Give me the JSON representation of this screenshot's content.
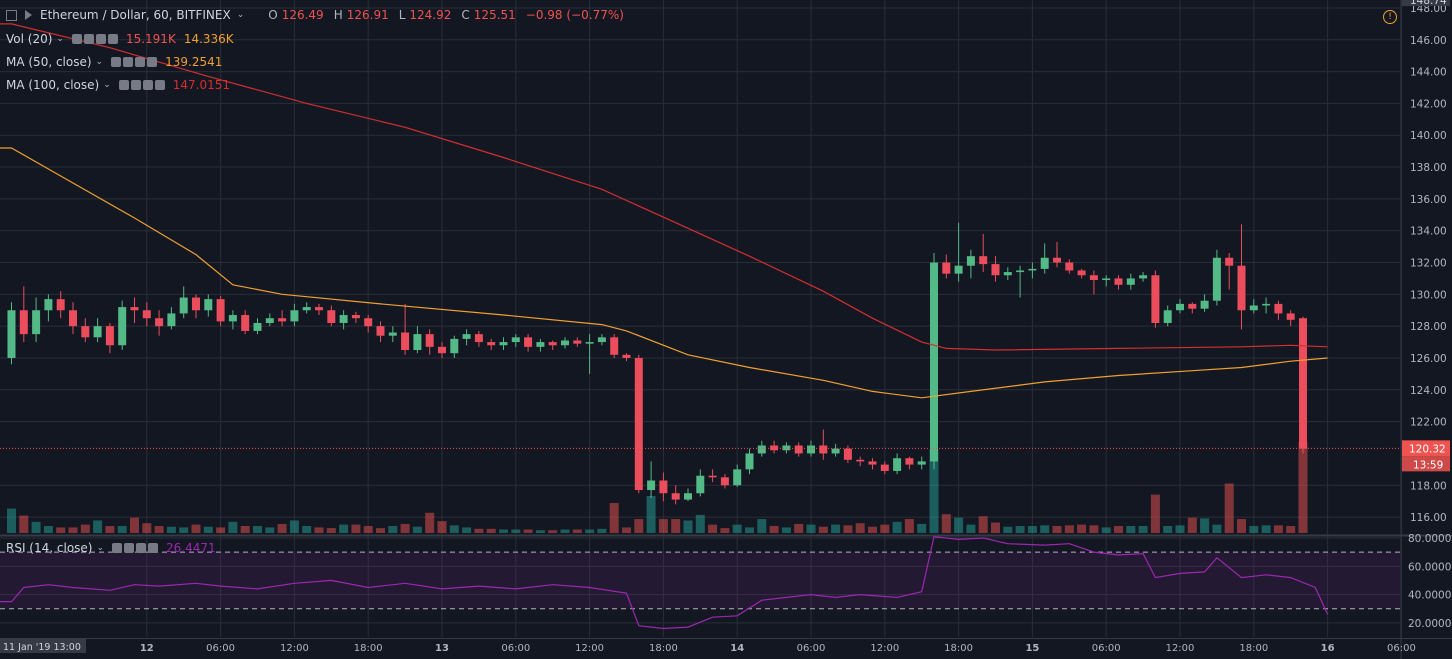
{
  "header": {
    "symbol": "Ethereum / Dollar, 60, BITFINEX",
    "o_label": "O",
    "o_value": "126.49",
    "h_label": "H",
    "h_value": "126.91",
    "l_label": "L",
    "l_value": "124.92",
    "c_label": "C",
    "c_value": "125.51",
    "change": "−0.98 (−0.77%)"
  },
  "indicators": {
    "vol": {
      "label": "Vol (20)",
      "v1": "15.191K",
      "v2": "14.336K"
    },
    "ma50": {
      "label": "MA (50, close)",
      "value": "139.2541"
    },
    "ma100": {
      "label": "MA (100, close)",
      "value": "147.0151"
    },
    "rsi": {
      "label": "RSI (14, close)",
      "value": "26.4471"
    }
  },
  "colors": {
    "background": "#131722",
    "grid": "#2a2e39",
    "up": "#26a69a",
    "up_candle": "#53b987",
    "down": "#ef5350",
    "down_candle": "#eb4d5c",
    "ma50": "#f0a030",
    "ma100": "#d32f2f",
    "rsi": "#9c27b0",
    "axis_text": "#b2b5be",
    "price_tag": "#ef5350"
  },
  "chart_data": {
    "type": "candlestick",
    "price_axis": {
      "ticks": [
        "148.00",
        "146.00",
        "144.00",
        "142.00",
        "140.00",
        "138.00",
        "136.00",
        "134.00",
        "132.00",
        "130.00",
        "128.00",
        "126.00",
        "124.00",
        "122.00",
        "118.00",
        "116.00"
      ],
      "ylim": [
        115,
        148.5
      ],
      "top_partial_label": "148.74"
    },
    "last_price": {
      "value": "120.32",
      "countdown": "13:59"
    },
    "rsi_axis": {
      "ticks": [
        "80.0000",
        "60.0000",
        "40.0000",
        "20.0000"
      ],
      "ylim": [
        10,
        80
      ],
      "bands": [
        70,
        30
      ]
    },
    "time_axis": {
      "labels": [
        {
          "label": "11 Jan '19  13:00",
          "index": 0
        },
        {
          "label": "12",
          "index": 11
        },
        {
          "label": "06:00",
          "index": 17
        },
        {
          "label": "12:00",
          "index": 23
        },
        {
          "label": "18:00",
          "index": 29
        },
        {
          "label": "13",
          "index": 35
        },
        {
          "label": "06:00",
          "index": 41
        },
        {
          "label": "12:00",
          "index": 47
        },
        {
          "label": "18:00",
          "index": 53
        },
        {
          "label": "14",
          "index": 59
        },
        {
          "label": "06:00",
          "index": 65
        },
        {
          "label": "12:00",
          "index": 71
        },
        {
          "label": "18:00",
          "index": 77
        },
        {
          "label": "15",
          "index": 83
        },
        {
          "label": "06:00",
          "index": 89
        },
        {
          "label": "12:00",
          "index": 95
        },
        {
          "label": "18:00",
          "index": 101
        },
        {
          "label": "16",
          "index": 107
        },
        {
          "label": "06:00",
          "index": 113
        }
      ]
    },
    "candles": [
      [
        126.0,
        129.0,
        125.6,
        129.5
      ],
      [
        129.0,
        127.5,
        127.0,
        130.5
      ],
      [
        127.5,
        129.0,
        127.0,
        129.8
      ],
      [
        129.0,
        129.7,
        128.3,
        130.0
      ],
      [
        129.7,
        129.0,
        128.5,
        130.2
      ],
      [
        129.0,
        128.0,
        127.5,
        129.5
      ],
      [
        128.0,
        127.3,
        127.0,
        128.5
      ],
      [
        127.3,
        128.0,
        127.0,
        128.5
      ],
      [
        128.0,
        126.8,
        126.3,
        128.2
      ],
      [
        126.8,
        129.2,
        126.5,
        129.6
      ],
      [
        129.2,
        129.0,
        128.2,
        129.8
      ],
      [
        129.0,
        128.5,
        128.0,
        129.5
      ],
      [
        128.5,
        128.0,
        127.4,
        129.0
      ],
      [
        128.0,
        128.8,
        127.8,
        129.2
      ],
      [
        128.8,
        129.8,
        128.5,
        130.5
      ],
      [
        129.8,
        129.0,
        128.5,
        130.0
      ],
      [
        129.0,
        129.7,
        128.6,
        130.0
      ],
      [
        129.7,
        128.3,
        128.0,
        129.9
      ],
      [
        128.3,
        128.7,
        127.8,
        129.0
      ],
      [
        128.7,
        127.7,
        127.5,
        129.0
      ],
      [
        127.7,
        128.2,
        127.5,
        128.5
      ],
      [
        128.2,
        128.5,
        128.0,
        128.8
      ],
      [
        128.5,
        128.3,
        128.0,
        129.0
      ],
      [
        128.3,
        129.0,
        128.0,
        129.4
      ],
      [
        129.0,
        129.2,
        128.8,
        129.5
      ],
      [
        129.2,
        129.0,
        128.7,
        129.4
      ],
      [
        129.0,
        128.2,
        128.0,
        129.3
      ],
      [
        128.2,
        128.7,
        127.8,
        129.0
      ],
      [
        128.7,
        128.5,
        128.2,
        128.9
      ],
      [
        128.5,
        128.0,
        127.6,
        128.7
      ],
      [
        128.0,
        127.4,
        127.0,
        128.3
      ],
      [
        127.4,
        127.6,
        127.0,
        128.0
      ],
      [
        127.6,
        126.5,
        126.2,
        129.4
      ],
      [
        126.5,
        127.5,
        126.3,
        128.0
      ],
      [
        127.5,
        126.7,
        126.2,
        127.8
      ],
      [
        126.7,
        126.3,
        126.0,
        127.0
      ],
      [
        126.3,
        127.2,
        126.0,
        127.4
      ],
      [
        127.2,
        127.5,
        126.8,
        127.8
      ],
      [
        127.5,
        127.0,
        126.7,
        127.7
      ],
      [
        127.0,
        126.8,
        126.5,
        127.2
      ],
      [
        126.8,
        127.0,
        126.5,
        127.3
      ],
      [
        127.0,
        127.3,
        126.7,
        127.5
      ],
      [
        127.3,
        126.7,
        126.4,
        127.5
      ],
      [
        126.7,
        127.0,
        126.4,
        127.2
      ],
      [
        127.0,
        126.8,
        126.5,
        127.1
      ],
      [
        126.8,
        127.1,
        126.6,
        127.3
      ],
      [
        127.1,
        126.9,
        126.7,
        127.3
      ],
      [
        126.9,
        127.0,
        125.0,
        127.5
      ],
      [
        127.0,
        127.3,
        126.8,
        127.5
      ],
      [
        127.3,
        126.2,
        126.0,
        127.5
      ],
      [
        126.2,
        126.0,
        125.8,
        126.3
      ],
      [
        126.0,
        117.7,
        117.5,
        126.2
      ],
      [
        117.7,
        118.3,
        117.2,
        119.5
      ],
      [
        118.3,
        117.5,
        117.0,
        118.8
      ],
      [
        117.5,
        117.1,
        116.8,
        118.0
      ],
      [
        117.1,
        117.5,
        117.0,
        117.8
      ],
      [
        117.5,
        118.6,
        117.3,
        119.0
      ],
      [
        118.6,
        118.5,
        118.2,
        119.0
      ],
      [
        118.5,
        118.0,
        117.8,
        118.7
      ],
      [
        118.0,
        119.0,
        117.9,
        119.3
      ],
      [
        119.0,
        120.0,
        118.7,
        120.3
      ],
      [
        120.0,
        120.5,
        119.8,
        120.8
      ],
      [
        120.5,
        120.2,
        120.0,
        120.8
      ],
      [
        120.2,
        120.5,
        120.0,
        120.7
      ],
      [
        120.5,
        120.0,
        119.8,
        120.7
      ],
      [
        120.0,
        120.5,
        119.8,
        120.8
      ],
      [
        120.5,
        120.0,
        119.6,
        121.5
      ],
      [
        120.0,
        120.3,
        119.8,
        120.6
      ],
      [
        120.3,
        119.6,
        119.4,
        120.5
      ],
      [
        119.6,
        119.5,
        119.2,
        119.8
      ],
      [
        119.5,
        119.3,
        119.0,
        119.7
      ],
      [
        119.3,
        118.9,
        118.7,
        119.5
      ],
      [
        118.9,
        119.7,
        118.7,
        120.0
      ],
      [
        119.7,
        119.3,
        119.0,
        119.8
      ],
      [
        119.3,
        119.5,
        119.0,
        119.8
      ],
      [
        119.5,
        132.0,
        119.0,
        132.6
      ],
      [
        132.0,
        131.3,
        131.0,
        132.5
      ],
      [
        131.3,
        131.8,
        130.8,
        134.5
      ],
      [
        131.8,
        132.4,
        131.0,
        132.8
      ],
      [
        132.4,
        131.9,
        131.4,
        133.8
      ],
      [
        131.9,
        131.2,
        130.8,
        132.4
      ],
      [
        131.2,
        131.4,
        130.9,
        131.7
      ],
      [
        131.4,
        131.5,
        129.8,
        131.8
      ],
      [
        131.5,
        131.6,
        131.0,
        132.0
      ],
      [
        131.6,
        132.3,
        131.3,
        133.2
      ],
      [
        132.3,
        132.0,
        131.7,
        133.3
      ],
      [
        132.0,
        131.5,
        131.3,
        132.2
      ],
      [
        131.5,
        131.2,
        131.0,
        131.6
      ],
      [
        131.2,
        130.9,
        130.0,
        131.5
      ],
      [
        130.9,
        131.0,
        130.5,
        131.2
      ],
      [
        131.0,
        130.6,
        130.3,
        131.2
      ],
      [
        130.6,
        131.0,
        130.3,
        131.3
      ],
      [
        131.0,
        131.2,
        130.8,
        131.4
      ],
      [
        131.2,
        128.2,
        127.9,
        131.5
      ],
      [
        128.2,
        129.0,
        128.0,
        129.3
      ],
      [
        129.0,
        129.4,
        128.8,
        129.7
      ],
      [
        129.4,
        129.1,
        128.8,
        129.5
      ],
      [
        129.1,
        129.6,
        128.9,
        130.0
      ],
      [
        129.6,
        132.3,
        129.3,
        132.8
      ],
      [
        132.3,
        131.8,
        130.3,
        132.6
      ],
      [
        131.8,
        129.0,
        127.8,
        134.4
      ],
      [
        129.0,
        129.3,
        128.8,
        129.7
      ],
      [
        129.3,
        129.4,
        128.8,
        129.8
      ],
      [
        129.4,
        128.8,
        128.4,
        129.6
      ],
      [
        128.8,
        128.4,
        128.0,
        129.0
      ],
      [
        128.5,
        120.3,
        120.0,
        128.6
      ]
    ],
    "volumes": [
      3.5,
      2.5,
      1.6,
      1.0,
      0.8,
      0.8,
      1.2,
      1.8,
      1.0,
      1.0,
      2.2,
      1.4,
      1.0,
      0.9,
      0.8,
      1.2,
      0.9,
      0.8,
      1.6,
      1.0,
      1.0,
      0.8,
      1.3,
      1.8,
      1.0,
      0.8,
      0.7,
      1.2,
      1.2,
      1.0,
      0.7,
      1.0,
      1.3,
      0.9,
      2.9,
      1.7,
      1.1,
      0.8,
      0.6,
      0.6,
      0.5,
      0.5,
      0.5,
      0.4,
      0.4,
      0.5,
      0.5,
      0.5,
      0.6,
      4.3,
      0.8,
      2.0,
      5.3,
      2.0,
      2.0,
      1.8,
      2.6,
      1.2,
      0.7,
      1.2,
      0.8,
      2.0,
      1.0,
      0.8,
      1.3,
      1.2,
      0.9,
      1.2,
      1.1,
      1.4,
      0.9,
      1.2,
      1.6,
      2.0,
      1.3,
      12.0,
      2.7,
      2.2,
      1.2,
      2.4,
      1.5,
      0.9,
      1.0,
      1.0,
      1.1,
      1.0,
      1.1,
      1.2,
      1.1,
      0.8,
      1.0,
      1.0,
      1.0,
      5.5,
      1.0,
      1.1,
      2.2,
      2.1,
      1.2,
      7.1,
      2.0,
      1.0,
      1.1,
      1.1,
      1.0,
      13.0
    ],
    "volume_max": 14.336,
    "ma50": [
      [
        0,
        139.2
      ],
      [
        5,
        137.0
      ],
      [
        10,
        134.8
      ],
      [
        15,
        132.5
      ],
      [
        18,
        130.6
      ],
      [
        22,
        130.0
      ],
      [
        30,
        129.4
      ],
      [
        40,
        128.7
      ],
      [
        48,
        128.1
      ],
      [
        50,
        127.7
      ],
      [
        55,
        126.2
      ],
      [
        60,
        125.4
      ],
      [
        66,
        124.6
      ],
      [
        70,
        123.9
      ],
      [
        74,
        123.5
      ],
      [
        78,
        123.9
      ],
      [
        84,
        124.5
      ],
      [
        90,
        124.9
      ],
      [
        96,
        125.2
      ],
      [
        100,
        125.4
      ],
      [
        104,
        125.8
      ],
      [
        107,
        126.0
      ]
    ],
    "ma100": [
      [
        0,
        147.0
      ],
      [
        8,
        145.5
      ],
      [
        16,
        143.7
      ],
      [
        24,
        142.0
      ],
      [
        32,
        140.5
      ],
      [
        40,
        138.6
      ],
      [
        48,
        136.6
      ],
      [
        54,
        134.5
      ],
      [
        60,
        132.4
      ],
      [
        66,
        130.2
      ],
      [
        70,
        128.5
      ],
      [
        74,
        127.0
      ],
      [
        76,
        126.6
      ],
      [
        80,
        126.5
      ],
      [
        90,
        126.6
      ],
      [
        100,
        126.7
      ],
      [
        104,
        126.8
      ],
      [
        107,
        126.7
      ]
    ],
    "rsi": [
      [
        0,
        35.0
      ],
      [
        1,
        45.0
      ],
      [
        3,
        47.0
      ],
      [
        5,
        45.0
      ],
      [
        8,
        43.0
      ],
      [
        10,
        47.0
      ],
      [
        12,
        46.0
      ],
      [
        15,
        48.0
      ],
      [
        17,
        46.0
      ],
      [
        20,
        44.0
      ],
      [
        23,
        48.0
      ],
      [
        26,
        50.0
      ],
      [
        29,
        45.0
      ],
      [
        32,
        48.0
      ],
      [
        35,
        44.0
      ],
      [
        38,
        46.0
      ],
      [
        41,
        44.0
      ],
      [
        44,
        47.0
      ],
      [
        47,
        45.0
      ],
      [
        50,
        41.0
      ],
      [
        51,
        18.0
      ],
      [
        53,
        16.0
      ],
      [
        55,
        17.0
      ],
      [
        57,
        24.0
      ],
      [
        59,
        25.0
      ],
      [
        61,
        36.0
      ],
      [
        63,
        38.0
      ],
      [
        65,
        40.0
      ],
      [
        67,
        38.0
      ],
      [
        69,
        40.0
      ],
      [
        72,
        38.0
      ],
      [
        74,
        42.0
      ],
      [
        75,
        81.0
      ],
      [
        77,
        79.0
      ],
      [
        79,
        80.0
      ],
      [
        81,
        76.0
      ],
      [
        84,
        75.0
      ],
      [
        86,
        76.0
      ],
      [
        88,
        70.0
      ],
      [
        90,
        68.0
      ],
      [
        92,
        69.0
      ],
      [
        93,
        52.0
      ],
      [
        95,
        55.0
      ],
      [
        97,
        56.0
      ],
      [
        98,
        66.0
      ],
      [
        100,
        52.0
      ],
      [
        102,
        54.0
      ],
      [
        104,
        52.0
      ],
      [
        106,
        45.0
      ],
      [
        107,
        26.0
      ]
    ]
  }
}
